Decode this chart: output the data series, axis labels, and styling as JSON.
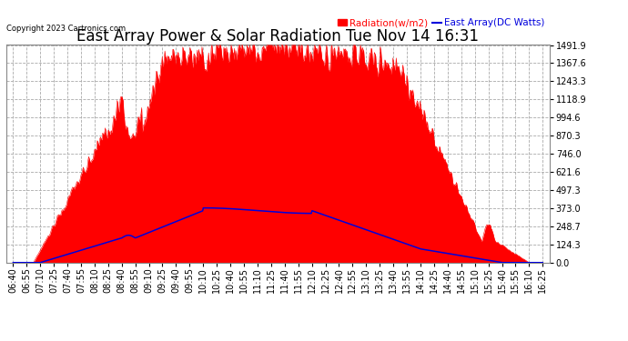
{
  "title": "East Array Power & Solar Radiation Tue Nov 14 16:31",
  "copyright": "Copyright 2023 Cartronics.com",
  "legend_radiation": "Radiation(w/m2)",
  "legend_east": "East Array(DC Watts)",
  "yticks": [
    0.0,
    124.3,
    248.7,
    373.0,
    497.3,
    621.6,
    746.0,
    870.3,
    994.6,
    1118.9,
    1243.3,
    1367.6,
    1491.9
  ],
  "ymax": 1491.9,
  "ymin": 0.0,
  "bg_color": "#ffffff",
  "plot_bg_color": "#ffffff",
  "grid_color": "#aaaaaa",
  "radiation_color": "#ff0000",
  "east_array_color": "#0000dd",
  "title_fontsize": 12,
  "tick_fontsize": 7,
  "xtick_labels": [
    "06:40",
    "06:55",
    "07:10",
    "07:25",
    "07:40",
    "07:55",
    "08:10",
    "08:25",
    "08:40",
    "08:55",
    "09:10",
    "09:25",
    "09:40",
    "09:55",
    "10:10",
    "10:25",
    "10:40",
    "10:55",
    "11:10",
    "11:25",
    "11:40",
    "11:55",
    "12:10",
    "12:25",
    "12:40",
    "12:55",
    "13:10",
    "13:25",
    "13:40",
    "13:55",
    "14:10",
    "14:25",
    "14:40",
    "14:55",
    "15:10",
    "15:25",
    "15:40",
    "15:55",
    "16:10",
    "16:25"
  ]
}
